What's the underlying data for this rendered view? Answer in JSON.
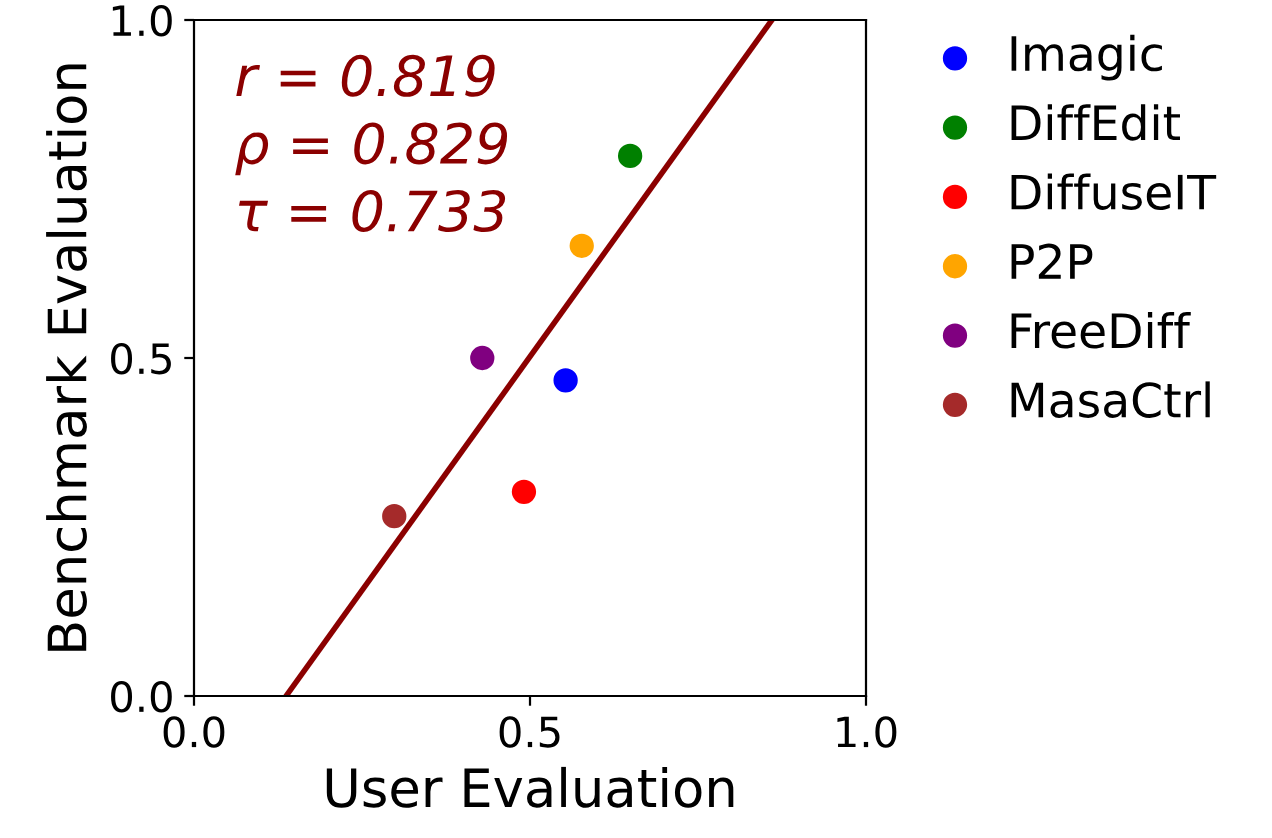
{
  "chart_data": {
    "type": "scatter",
    "xlabel": "User Evaluation",
    "ylabel": "Benchmark Evaluation",
    "xlim": [
      0,
      1
    ],
    "ylim": [
      0,
      1
    ],
    "xticks": [
      {
        "value": 0,
        "label": "0.0"
      },
      {
        "value": 0.5,
        "label": "0.5"
      },
      {
        "value": 1,
        "label": "1.0"
      }
    ],
    "yticks": [
      {
        "value": 0,
        "label": "0.0"
      },
      {
        "value": 0.5,
        "label": "0.5"
      },
      {
        "value": 1,
        "label": "1.0"
      }
    ],
    "grid": false,
    "legend": "right",
    "annotations": [
      "r = 0.819",
      "ρ = 0.829",
      "τ = 0.733"
    ],
    "series": [
      {
        "name": "Imagic",
        "marker": "circle",
        "color": "#0000ff",
        "x": [
          0.553
        ],
        "values": [
          0.467
        ]
      },
      {
        "name": "DiffEdit",
        "marker": "circle",
        "color": "#008000",
        "x": [
          0.649
        ],
        "values": [
          0.799
        ]
      },
      {
        "name": "DiffuseIT",
        "marker": "circle",
        "color": "#ff0000",
        "x": [
          0.491
        ],
        "values": [
          0.302
        ]
      },
      {
        "name": "P2P",
        "marker": "circle",
        "color": "#ffa500",
        "x": [
          0.577
        ],
        "values": [
          0.666
        ]
      },
      {
        "name": "FreeDiff",
        "marker": "circle",
        "color": "#800080",
        "x": [
          0.429
        ],
        "values": [
          0.5
        ]
      },
      {
        "name": "MasaCtrl",
        "marker": "circle",
        "color": "#a52a2a",
        "x": [
          0.298
        ],
        "values": [
          0.266
        ]
      },
      {
        "type": "line",
        "color": "#8b0000",
        "x": [
          0.137,
          0.86
        ],
        "values": [
          0,
          1
        ]
      }
    ]
  }
}
